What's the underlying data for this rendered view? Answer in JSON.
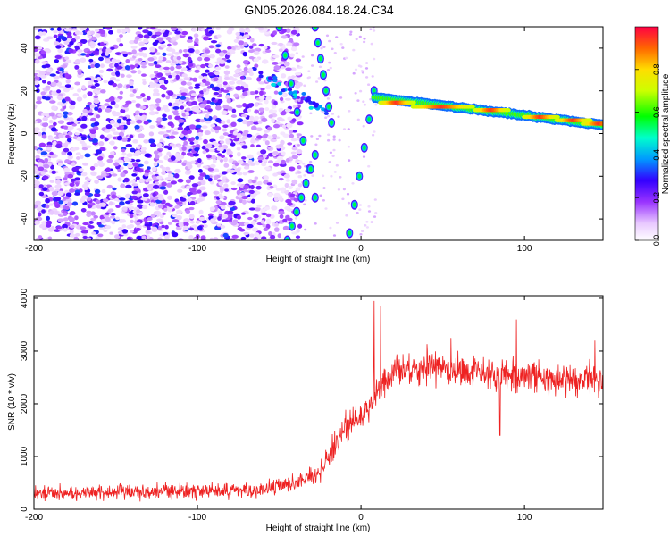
{
  "figure": {
    "title": "GN05.2026.084.18.24.C34"
  },
  "chart_data": [
    {
      "type": "heatmap",
      "xlabel": "Height of straight line (km)",
      "ylabel": "Frequency (Hz)",
      "xlim": [
        -200,
        148
      ],
      "ylim": [
        -50,
        50
      ],
      "xticks": [
        "-200",
        "-100",
        "0",
        "100"
      ],
      "xtick_values": [
        -200,
        -100,
        0,
        100
      ],
      "yticks": [
        "-40",
        "-20",
        "0",
        "20",
        "40"
      ],
      "ytick_values": [
        -40,
        -20,
        0,
        20,
        40
      ],
      "colorbar": {
        "label": "Normalized spectral amplitude",
        "range": [
          0,
          1
        ],
        "ticks": [
          "0.0",
          "0.2",
          "0.4",
          "0.6",
          "0.8"
        ],
        "tick_values": [
          0.0,
          0.2,
          0.4,
          0.6,
          0.8
        ]
      },
      "features": {
        "noise_region_x": [
          -200,
          -45
        ],
        "diagonal_streak": [
          [
            -62,
            28
          ],
          [
            -40,
            18
          ],
          [
            -20,
            10
          ]
        ],
        "converging_arms": [
          {
            "x": [
              -50,
              -28
            ],
            "y": [
              50,
              -30
            ]
          },
          {
            "x": [
              -28,
              -18
            ],
            "y": [
              50,
              5
            ]
          },
          {
            "x": [
              -10,
              8
            ],
            "y": [
              -60,
              20
            ]
          },
          {
            "x": [
              -45,
              -28
            ],
            "y": [
              -50,
              -10
            ]
          }
        ],
        "signal_band": {
          "x": [
            8,
            148
          ],
          "y": [
            17,
            4
          ],
          "peak_amplitude": 0.95
        }
      }
    },
    {
      "type": "line",
      "xlabel": "Height of straight line (km)",
      "ylabel": "SNR (10 * v/v)",
      "xlim": [
        -200,
        148
      ],
      "ylim": [
        0,
        4050
      ],
      "xticks": [
        "-200",
        "-100",
        "0",
        "100"
      ],
      "xtick_values": [
        -200,
        -100,
        0,
        100
      ],
      "yticks": [
        "0",
        "1000",
        "2000",
        "3000",
        "4000"
      ],
      "ytick_values": [
        0,
        1000,
        2000,
        3000,
        4000
      ],
      "color": "#ee2222",
      "trend": [
        [
          -200,
          300
        ],
        [
          -150,
          320
        ],
        [
          -100,
          340
        ],
        [
          -60,
          380
        ],
        [
          -40,
          480
        ],
        [
          -25,
          700
        ],
        [
          -15,
          1300
        ],
        [
          -5,
          1700
        ],
        [
          5,
          1900
        ],
        [
          10,
          2250
        ],
        [
          20,
          2600
        ],
        [
          40,
          2700
        ],
        [
          60,
          2650
        ],
        [
          80,
          2550
        ],
        [
          100,
          2550
        ],
        [
          120,
          2450
        ],
        [
          148,
          2450
        ]
      ],
      "spikes": [
        [
          8,
          3950
        ],
        [
          12,
          3850
        ],
        [
          55,
          3250
        ],
        [
          95,
          3600
        ],
        [
          143,
          3200
        ],
        [
          85,
          1400
        ]
      ]
    }
  ]
}
